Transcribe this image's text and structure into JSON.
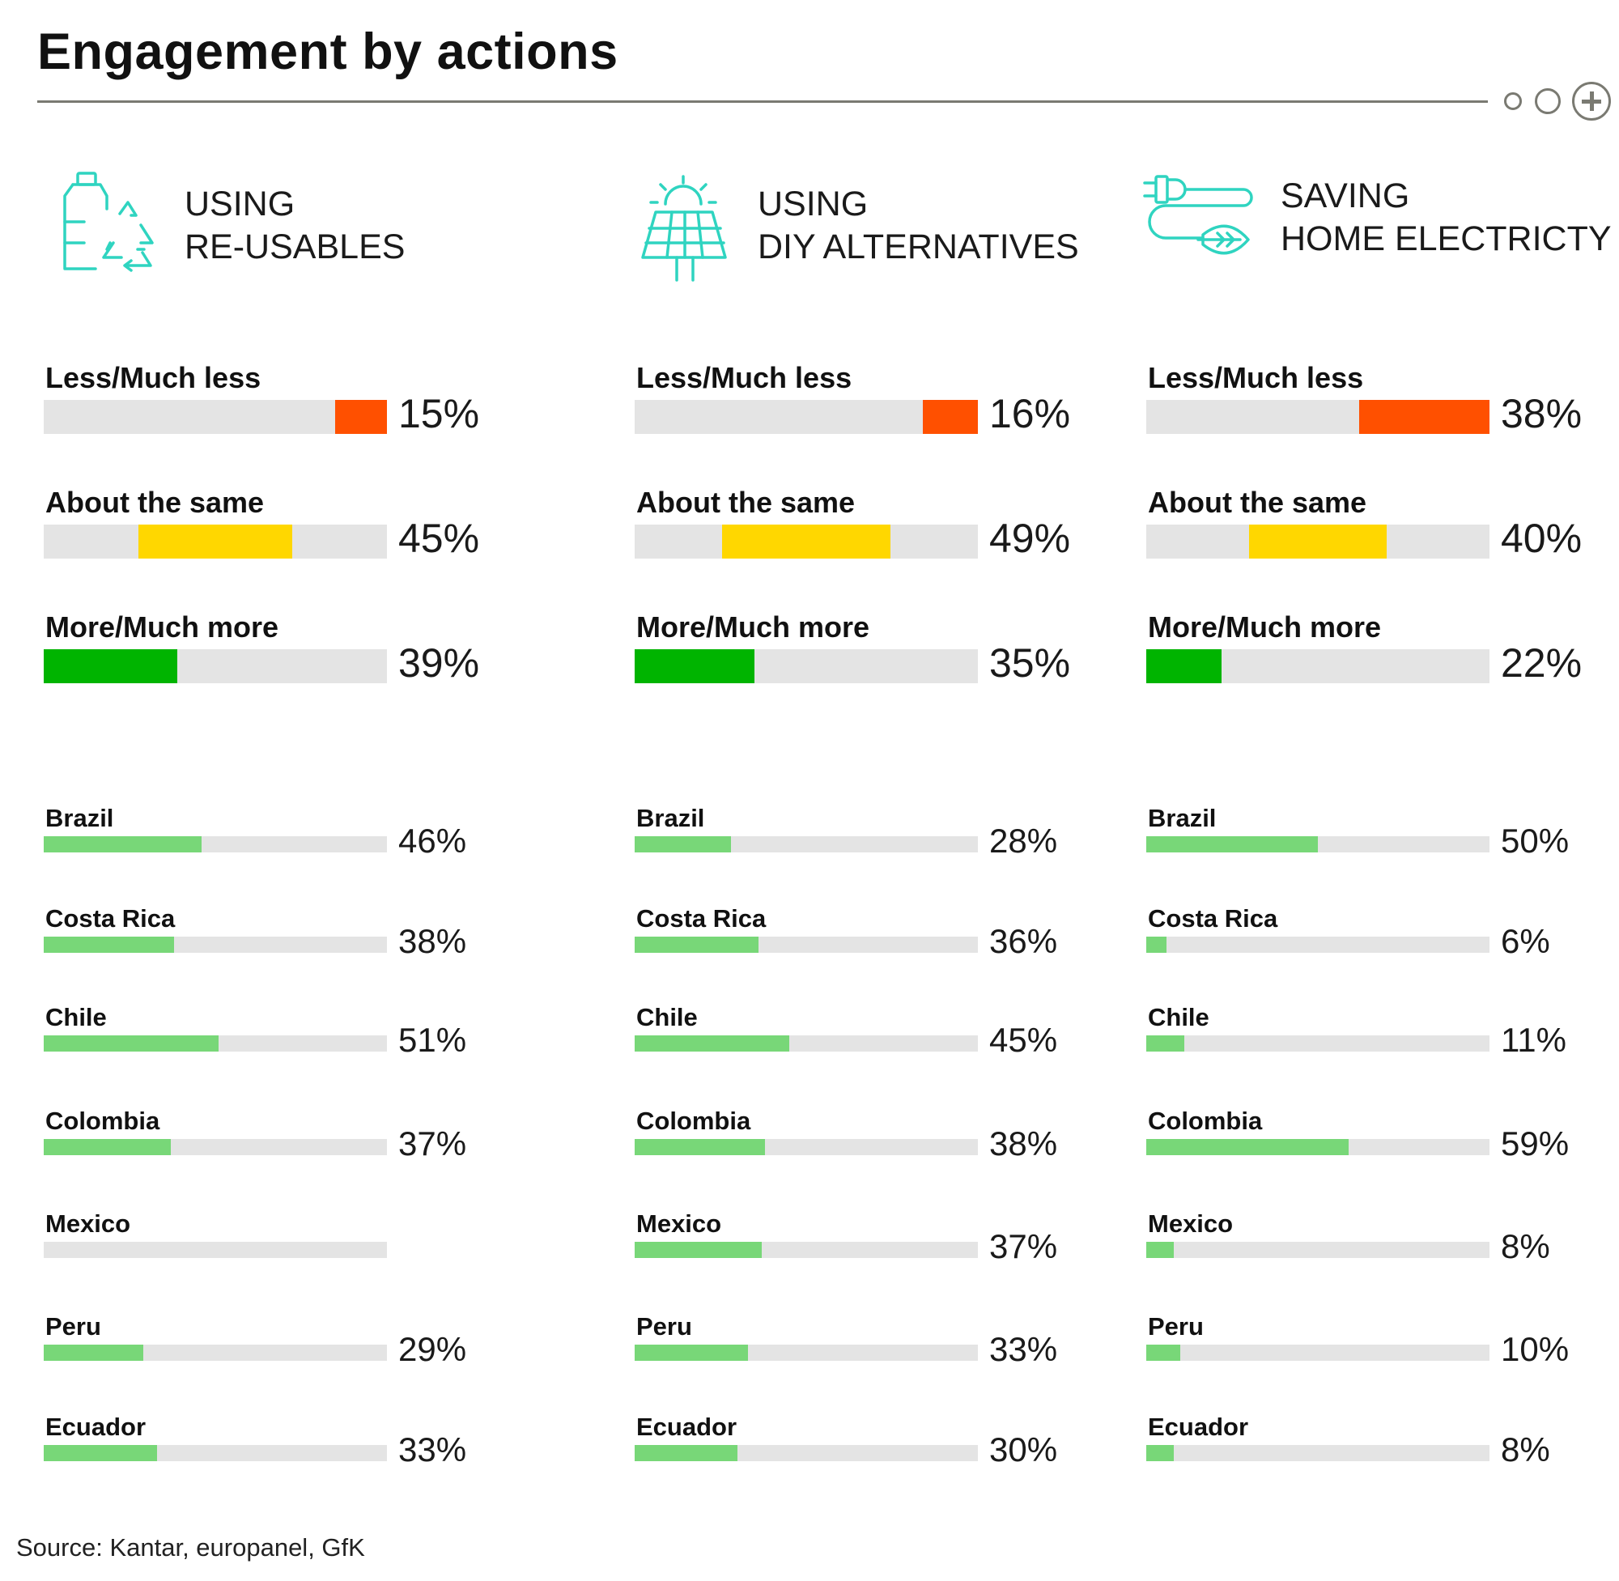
{
  "title": "Engagement by actions",
  "source": "Source: Kantar, europanel, GfK",
  "colors": {
    "less": "#ff5000",
    "same": "#ffd700",
    "more": "#00b400",
    "country": "#78d778",
    "track": "#e4e4e4",
    "icon": "#2fd4c0"
  },
  "chart_data": [
    {
      "type": "bar",
      "title": "USING RE-USABLES",
      "title_lines": [
        "USING",
        "RE-USABLES"
      ],
      "icon": "recycle-bottle-icon",
      "categories": [
        "Less/Much less",
        "About the same",
        "More/Much more"
      ],
      "values": [
        15,
        45,
        39
      ],
      "value_labels": [
        "15%",
        "45%",
        "39%"
      ],
      "countries": [
        "Brazil",
        "Costa Rica",
        "Chile",
        "Colombia",
        "Mexico",
        "Peru",
        "Ecuador"
      ],
      "country_values": [
        46,
        38,
        51,
        37,
        null,
        29,
        33
      ],
      "country_labels": [
        "46%",
        "38%",
        "51%",
        "37%",
        "",
        "29%",
        "33%"
      ]
    },
    {
      "type": "bar",
      "title": "USING DIY ALTERNATIVES",
      "title_lines": [
        "USING",
        "DIY ALTERNATIVES"
      ],
      "icon": "solar-panel-icon",
      "categories": [
        "Less/Much less",
        "About the same",
        "More/Much more"
      ],
      "values": [
        16,
        49,
        35
      ],
      "value_labels": [
        "16%",
        "49%",
        "35%"
      ],
      "countries": [
        "Brazil",
        "Costa Rica",
        "Chile",
        "Colombia",
        "Mexico",
        "Peru",
        "Ecuador"
      ],
      "country_values": [
        28,
        36,
        45,
        38,
        37,
        33,
        30
      ],
      "country_labels": [
        "28%",
        "36%",
        "45%",
        "38%",
        "37%",
        "33%",
        "30%"
      ]
    },
    {
      "type": "bar",
      "title": "SAVING HOME ELECTRICTY",
      "title_lines": [
        "SAVING",
        "HOME ELECTRICTY"
      ],
      "icon": "plug-leaf-icon",
      "categories": [
        "Less/Much less",
        "About the same",
        "More/Much more"
      ],
      "values": [
        38,
        40,
        22
      ],
      "value_labels": [
        "38%",
        "40%",
        "22%"
      ],
      "countries": [
        "Brazil",
        "Costa Rica",
        "Chile",
        "Colombia",
        "Mexico",
        "Peru",
        "Ecuador"
      ],
      "country_values": [
        50,
        6,
        11,
        59,
        8,
        10,
        8
      ],
      "country_labels": [
        "50%",
        "6%",
        "11%",
        "59%",
        "8%",
        "10%",
        "8%"
      ]
    }
  ]
}
